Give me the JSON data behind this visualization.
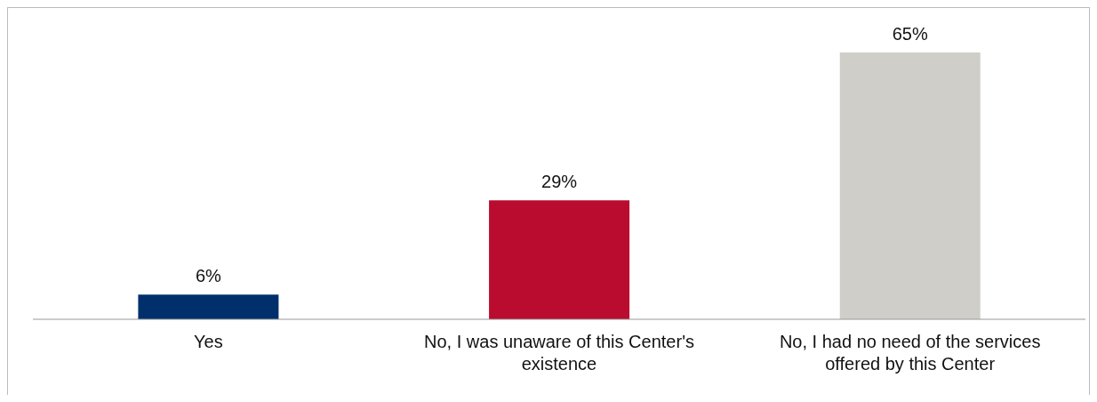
{
  "chart_data": {
    "type": "bar",
    "categories": [
      "Yes",
      "No, I was unaware of this Center's existence",
      "No, I had no need of the services offered by this Center"
    ],
    "values": [
      6,
      29,
      65
    ],
    "colors": [
      "#002f6c",
      "#ba0c2f",
      "#d0cec9"
    ],
    "value_labels": [
      "6%",
      "29%",
      "65%"
    ]
  }
}
